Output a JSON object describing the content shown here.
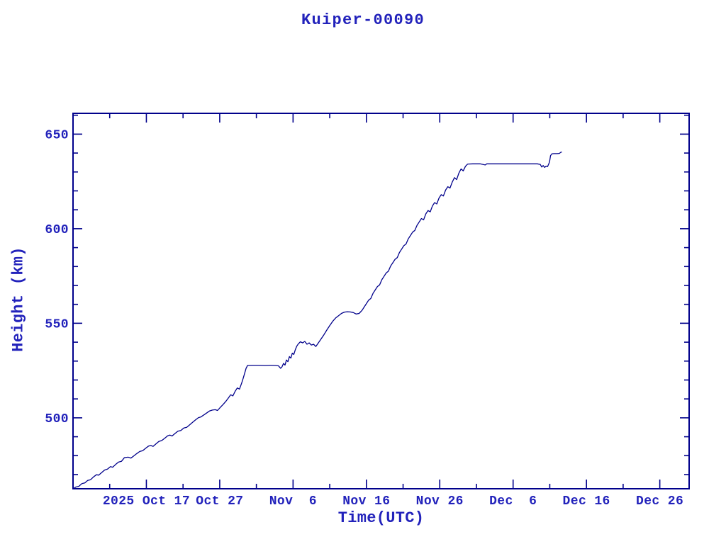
{
  "page": {
    "background": "#ffffff"
  },
  "chart_data": {
    "type": "line",
    "title": "Kuiper-00090",
    "xlabel": "Time(UTC)",
    "ylabel": "Height (km)",
    "legend": "none",
    "grid": "off",
    "colors": {
      "text": "#2222bb",
      "line": "#00008b",
      "frame": "#00008b",
      "background": "#ffffff"
    },
    "x_axis": {
      "range_days": [
        0,
        84
      ],
      "major_ticks": [
        {
          "day": 10,
          "label": "2025 Oct 17"
        },
        {
          "day": 20,
          "label": "Oct 27"
        },
        {
          "day": 30,
          "label": "Nov  6"
        },
        {
          "day": 40,
          "label": "Nov 16"
        },
        {
          "day": 50,
          "label": "Nov 26"
        },
        {
          "day": 60,
          "label": "Dec  6"
        },
        {
          "day": 70,
          "label": "Dec 16"
        },
        {
          "day": 80,
          "label": "Dec 26"
        }
      ],
      "minor_ticks_days": [
        5,
        15,
        25,
        35,
        45,
        55,
        65,
        75
      ]
    },
    "y_axis": {
      "range_km": [
        462.5,
        661
      ],
      "major_ticks": [
        {
          "km": 500,
          "label": "500"
        },
        {
          "km": 550,
          "label": "550"
        },
        {
          "km": 600,
          "label": "600"
        },
        {
          "km": 650,
          "label": "650"
        }
      ],
      "minor_tick_step_km": 10
    },
    "series": [
      {
        "name": "Kuiper-00090 height",
        "points": [
          [
            0,
            462.5
          ],
          [
            0.4,
            463.4
          ],
          [
            0.8,
            463.8
          ],
          [
            1.2,
            465.2
          ],
          [
            1.6,
            465.6
          ],
          [
            2,
            466.9
          ],
          [
            2.4,
            467.3
          ],
          [
            2.8,
            468.8
          ],
          [
            3.2,
            469.9
          ],
          [
            3.5,
            469.7
          ],
          [
            3.9,
            471
          ],
          [
            4.3,
            472.4
          ],
          [
            4.7,
            472.9
          ],
          [
            5.1,
            474.2
          ],
          [
            5.4,
            473.9
          ],
          [
            5.8,
            475.3
          ],
          [
            6.2,
            476.6
          ],
          [
            6.6,
            477
          ],
          [
            7,
            478.9
          ],
          [
            7.5,
            479.2
          ],
          [
            7.9,
            478.7
          ],
          [
            8.3,
            479.9
          ],
          [
            8.7,
            481.1
          ],
          [
            9.1,
            482.2
          ],
          [
            9.5,
            482.6
          ],
          [
            9.9,
            483.9
          ],
          [
            10.3,
            485.1
          ],
          [
            10.6,
            485.4
          ],
          [
            10.9,
            484.9
          ],
          [
            11.3,
            486.2
          ],
          [
            11.7,
            487.5
          ],
          [
            12.1,
            488
          ],
          [
            12.5,
            489.2
          ],
          [
            12.9,
            490.5
          ],
          [
            13.2,
            490.9
          ],
          [
            13.5,
            490.4
          ],
          [
            13.9,
            491.7
          ],
          [
            14.3,
            492.9
          ],
          [
            14.7,
            493.3
          ],
          [
            15.1,
            494.6
          ],
          [
            15.5,
            495
          ],
          [
            15.9,
            496.3
          ],
          [
            16.3,
            497.6
          ],
          [
            16.7,
            498.9
          ],
          [
            17.1,
            500.1
          ],
          [
            17.4,
            500.4
          ],
          [
            17.8,
            501.4
          ],
          [
            18.2,
            502.5
          ],
          [
            18.6,
            503.6
          ],
          [
            19,
            504.1
          ],
          [
            19.4,
            504.3
          ],
          [
            19.7,
            503.9
          ],
          [
            20.1,
            505.6
          ],
          [
            20.5,
            507.2
          ],
          [
            20.9,
            509
          ],
          [
            21.2,
            510.6
          ],
          [
            21.5,
            512.2
          ],
          [
            21.8,
            511.6
          ],
          [
            22.1,
            514
          ],
          [
            22.4,
            515.8
          ],
          [
            22.7,
            515.2
          ],
          [
            23,
            518.4
          ],
          [
            23.2,
            520.9
          ],
          [
            23.4,
            523.6
          ],
          [
            23.6,
            526.2
          ],
          [
            23.8,
            527.7
          ],
          [
            24.5,
            527.8
          ],
          [
            25.3,
            527.8
          ],
          [
            26.2,
            527.7
          ],
          [
            27,
            527.8
          ],
          [
            27.6,
            527.7
          ],
          [
            28,
            527.5
          ],
          [
            28.3,
            526.2
          ],
          [
            28.5,
            527
          ],
          [
            28.7,
            528.8
          ],
          [
            28.9,
            527.9
          ],
          [
            29.1,
            530.6
          ],
          [
            29.3,
            529.7
          ],
          [
            29.5,
            532.4
          ],
          [
            29.7,
            531.6
          ],
          [
            29.9,
            534.2
          ],
          [
            30.1,
            533.5
          ],
          [
            30.3,
            536
          ],
          [
            30.5,
            537.8
          ],
          [
            30.7,
            539
          ],
          [
            31,
            540.2
          ],
          [
            31.3,
            539.6
          ],
          [
            31.6,
            540.4
          ],
          [
            31.9,
            538.9
          ],
          [
            32.2,
            539.6
          ],
          [
            32.5,
            538.5
          ],
          [
            32.8,
            538.9
          ],
          [
            33.1,
            537.7
          ],
          [
            33.4,
            539.3
          ],
          [
            33.8,
            541.6
          ],
          [
            34.2,
            543.9
          ],
          [
            34.6,
            546.4
          ],
          [
            35,
            548.8
          ],
          [
            35.4,
            551
          ],
          [
            35.8,
            552.8
          ],
          [
            36.2,
            554
          ],
          [
            36.6,
            555.2
          ],
          [
            37,
            555.9
          ],
          [
            37.4,
            556.1
          ],
          [
            37.8,
            556
          ],
          [
            38.2,
            555.7
          ],
          [
            38.6,
            554.9
          ],
          [
            39,
            555.2
          ],
          [
            39.4,
            556.8
          ],
          [
            39.7,
            558.6
          ],
          [
            40,
            560.4
          ],
          [
            40.3,
            562.2
          ],
          [
            40.6,
            563.1
          ],
          [
            40.9,
            565.8
          ],
          [
            41.2,
            567.6
          ],
          [
            41.5,
            569.4
          ],
          [
            41.8,
            570.3
          ],
          [
            42.1,
            573
          ],
          [
            42.4,
            574.8
          ],
          [
            42.7,
            576.6
          ],
          [
            43,
            577.5
          ],
          [
            43.3,
            580.2
          ],
          [
            43.6,
            582
          ],
          [
            43.9,
            583.8
          ],
          [
            44.2,
            584.7
          ],
          [
            44.5,
            587.4
          ],
          [
            44.8,
            589.2
          ],
          [
            45.1,
            591
          ],
          [
            45.4,
            591.9
          ],
          [
            45.7,
            594.6
          ],
          [
            46,
            596.4
          ],
          [
            46.3,
            598.2
          ],
          [
            46.6,
            599.1
          ],
          [
            46.9,
            601.8
          ],
          [
            47.2,
            603.6
          ],
          [
            47.5,
            605.4
          ],
          [
            47.8,
            604.7
          ],
          [
            48.1,
            607.8
          ],
          [
            48.4,
            609.6
          ],
          [
            48.7,
            608.9
          ],
          [
            49,
            612
          ],
          [
            49.3,
            613.8
          ],
          [
            49.6,
            613.1
          ],
          [
            49.9,
            616.2
          ],
          [
            50.2,
            618
          ],
          [
            50.5,
            617.3
          ],
          [
            50.8,
            620.4
          ],
          [
            51.1,
            622.2
          ],
          [
            51.4,
            621.5
          ],
          [
            51.7,
            624.6
          ],
          [
            52,
            627
          ],
          [
            52.3,
            626
          ],
          [
            52.6,
            629.4
          ],
          [
            52.9,
            631.6
          ],
          [
            53.2,
            630.6
          ],
          [
            53.5,
            633
          ],
          [
            53.8,
            634.2
          ],
          [
            54.5,
            634.3
          ],
          [
            55.5,
            634.3
          ],
          [
            56.2,
            633.7
          ],
          [
            56.4,
            634.3
          ],
          [
            57.5,
            634.3
          ],
          [
            58.5,
            634.3
          ],
          [
            59.5,
            634.3
          ],
          [
            60.5,
            634.3
          ],
          [
            61.5,
            634.3
          ],
          [
            62.5,
            634.3
          ],
          [
            63.3,
            634.3
          ],
          [
            63.7,
            634
          ],
          [
            63.9,
            632.6
          ],
          [
            64.1,
            633.4
          ],
          [
            64.3,
            632.4
          ],
          [
            64.5,
            633.1
          ],
          [
            64.7,
            632.8
          ],
          [
            64.9,
            634.6
          ],
          [
            65,
            636
          ],
          [
            65.1,
            638.6
          ],
          [
            65.3,
            639.6
          ],
          [
            65.6,
            639.7
          ],
          [
            66,
            639.7
          ],
          [
            66.3,
            639.8
          ],
          [
            66.5,
            640.4
          ],
          [
            66.6,
            640.5
          ]
        ]
      }
    ]
  }
}
